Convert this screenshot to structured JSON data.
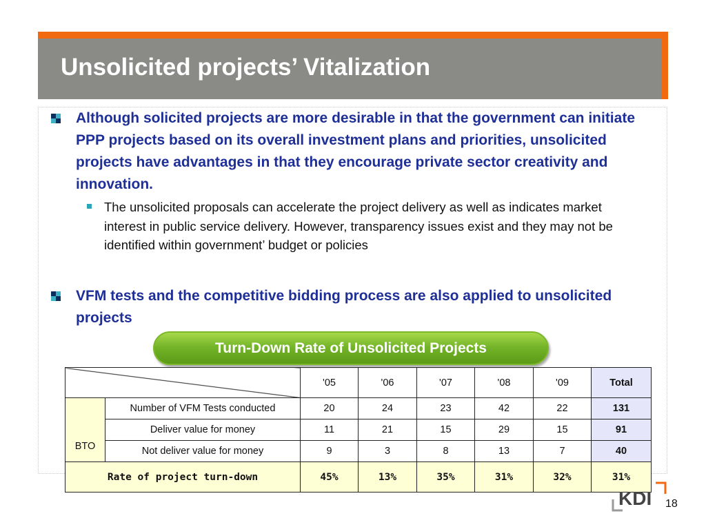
{
  "slide": {
    "title": "Unsolicited projects’ Vitalization",
    "bullet1": "Although solicited projects are more desirable in that the government can initiate PPP projects based on its overall investment plans and priorities, unsolicited projects have advantages in that they encourage private sector creativity and innovation.",
    "sub_bullet": "The unsolicited proposals can accelerate the project delivery as well as indicates market interest in public service delivery. However, transparency issues exist and they may not be identified within government’ budget or policies",
    "bullet2": "VFM tests and the competitive bidding process are also applied to unsolicited projects",
    "table_title": "Turn-Down Rate of Unsolicited Projects",
    "page_number": "18",
    "logo_text": "KDI"
  },
  "table": {
    "columns": [
      "'05",
      "'06",
      "'07",
      "'08",
      "'09",
      "Total"
    ],
    "group_label": "BTO",
    "rows": [
      {
        "label": "Number of VFM Tests conducted",
        "values": [
          "20",
          "24",
          "23",
          "42",
          "22"
        ],
        "total": "131"
      },
      {
        "label": "Deliver value for money",
        "values": [
          "11",
          "21",
          "15",
          "29",
          "15"
        ],
        "total": "91"
      },
      {
        "label": "Not deliver value for money",
        "values": [
          "9",
          "3",
          "8",
          "13",
          "7"
        ],
        "total": "40"
      }
    ],
    "rate_row": {
      "label": "Rate of project turn-down",
      "values": [
        "45%",
        "13%",
        "35%",
        "31%",
        "32%"
      ],
      "total": "31%"
    }
  },
  "colors": {
    "title_bar": "#8a8a87",
    "title_accent": "#f26a10",
    "bullet_text": "#1f2f98",
    "pill_green": "#75b52a",
    "total_column": "#e6e6fa",
    "highlight_row": "#ffffd6"
  }
}
